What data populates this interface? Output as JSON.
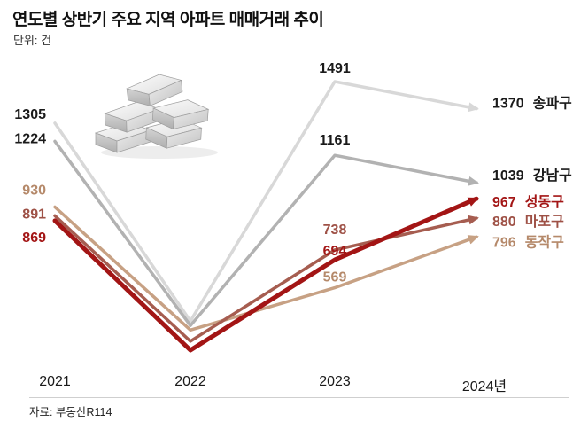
{
  "header": {
    "title": "연도별 상반기 주요 지역 아파트 매매거래 추이",
    "unit": "단위: 건"
  },
  "footer": {
    "source": "자료: 부동산R114"
  },
  "chart_data": {
    "type": "line",
    "title": "연도별 상반기 주요 지역 아파트 매매거래 추이",
    "unit": "건",
    "grid": false,
    "legend_position": "end-of-line",
    "note": "2022 points are unlabeled in the chart; values estimated from line positions",
    "categories": [
      "2021",
      "2022",
      "2023",
      "2024"
    ],
    "categories_display": [
      "2021",
      "2022",
      "2023",
      "2024년"
    ],
    "series": [
      {
        "name": "송파구",
        "color": "#d8d8d8",
        "labelColor": "#1a1a1a",
        "width": 3.5,
        "values": [
          1305,
          420,
          1491,
          1370
        ],
        "value_labels": [
          "1305",
          null,
          "1491",
          "1370"
        ],
        "label_dy": [
          -10,
          0,
          -10,
          -6
        ],
        "estimated_2022": true
      },
      {
        "name": "강남구",
        "color": "#b2b2b2",
        "labelColor": "#1a1a1a",
        "width": 3.5,
        "values": [
          1224,
          400,
          1161,
          1039
        ],
        "value_labels": [
          "1224",
          null,
          "1161",
          "1039"
        ],
        "label_dy": [
          -3,
          0,
          -12,
          -8
        ],
        "estimated_2022": true
      },
      {
        "name": "동작구",
        "color": "#c7a184",
        "labelColor": "#b5896a",
        "width": 3.5,
        "values": [
          930,
          380,
          569,
          796
        ],
        "value_labels": [
          "930",
          null,
          "569",
          "796"
        ],
        "label_dy": [
          -19,
          0,
          -7,
          6
        ],
        "estimated_2022": true
      },
      {
        "name": "마포구",
        "color": "#a65d50",
        "labelColor": "#9e5146",
        "width": 3.5,
        "values": [
          891,
          330,
          738,
          880
        ],
        "value_labels": [
          "891",
          null,
          "738",
          "880"
        ],
        "label_dy": [
          -2,
          0,
          -18,
          4
        ],
        "estimated_2022": true
      },
      {
        "name": "성동구",
        "color": "#a31515",
        "labelColor": "#a31515",
        "width": 5,
        "values": [
          869,
          290,
          694,
          967
        ],
        "value_labels": [
          "869",
          null,
          "694",
          "967"
        ],
        "label_dy": [
          19,
          0,
          -5,
          4
        ],
        "estimated_2022": true
      }
    ],
    "layout": {
      "x_positions": [
        62,
        215,
        378,
        538
      ],
      "v_min": 290,
      "y_at_min": 395,
      "scale": 0.2523
    }
  }
}
